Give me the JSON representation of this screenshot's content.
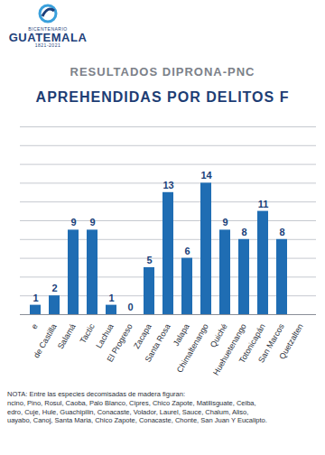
{
  "logo": [
    "BICENTENARIO",
    "GUATEMALA",
    "1821-2021"
  ],
  "chart_data": {
    "type": "bar",
    "subtitle": "RESULTADOS  DIPRONA-PNC",
    "title": "APREHENDIDAS POR DELITOS F",
    "categories": [
      "e",
      "de Castilla",
      "Salamá",
      "Tactic",
      "Lachua",
      "El Progreso",
      "Zacapa",
      "Santa Rosa",
      "Jalapa",
      "Chimaltenango",
      "Quiché",
      "Huehuetenango",
      "Totonicapán",
      "San Marcos",
      "Quetzalten"
    ],
    "values": [
      1,
      2,
      9,
      9,
      1,
      0,
      5,
      13,
      6,
      14,
      9,
      8,
      11,
      8,
      null
    ],
    "color": "#1f6db3",
    "ylim": [
      0,
      20
    ],
    "yticks": [
      0,
      2,
      4,
      6,
      8,
      10,
      12,
      14,
      16,
      18,
      20
    ],
    "grid": true,
    "data_labels": true,
    "tick_labels": "x"
  },
  "note": [
    "NOTA: Entre las especies decomisadas de madera figuran:",
    "ncino, Pino, Rosul, Caoba, Palo Blanco, Cipres, Chico Zapote, Matilisguate, Ceiba,",
    "edro, Cuje, Hule, Guachipilin, Conacaste, Volador, Laurel, Sauce, Chalum, Aliso,",
    "uayabo, Canoj, Santa Maria, Chico Zapote, Conacaste, Chonte, San Juan Y Eucalipto."
  ]
}
